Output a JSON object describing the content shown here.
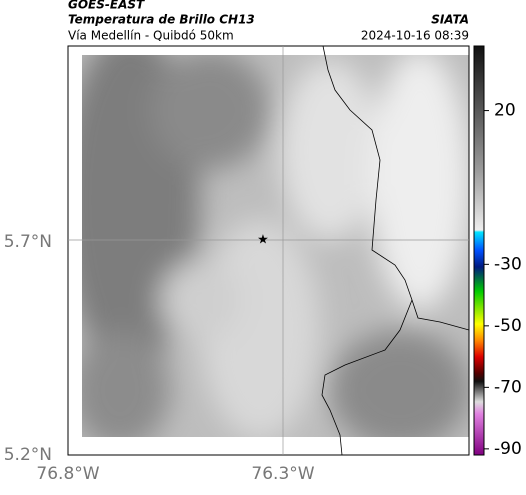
{
  "header": {
    "source": "GOES-EAST",
    "title": "Temperatura de Brillo CH13",
    "subtitle": "Vía Medellín - Quibdó 50km",
    "agency": "SIATA",
    "timestamp": "2024-10-16 08:39"
  },
  "map": {
    "lat_labels": [
      "5.7°N",
      "5.2°N"
    ],
    "lon_labels": [
      "76.8°W",
      "76.3°W"
    ]
  },
  "colorbar": {
    "lim": [
      -92,
      41
    ],
    "ticks": [
      20,
      -30,
      -50,
      -70,
      -90
    ]
  }
}
